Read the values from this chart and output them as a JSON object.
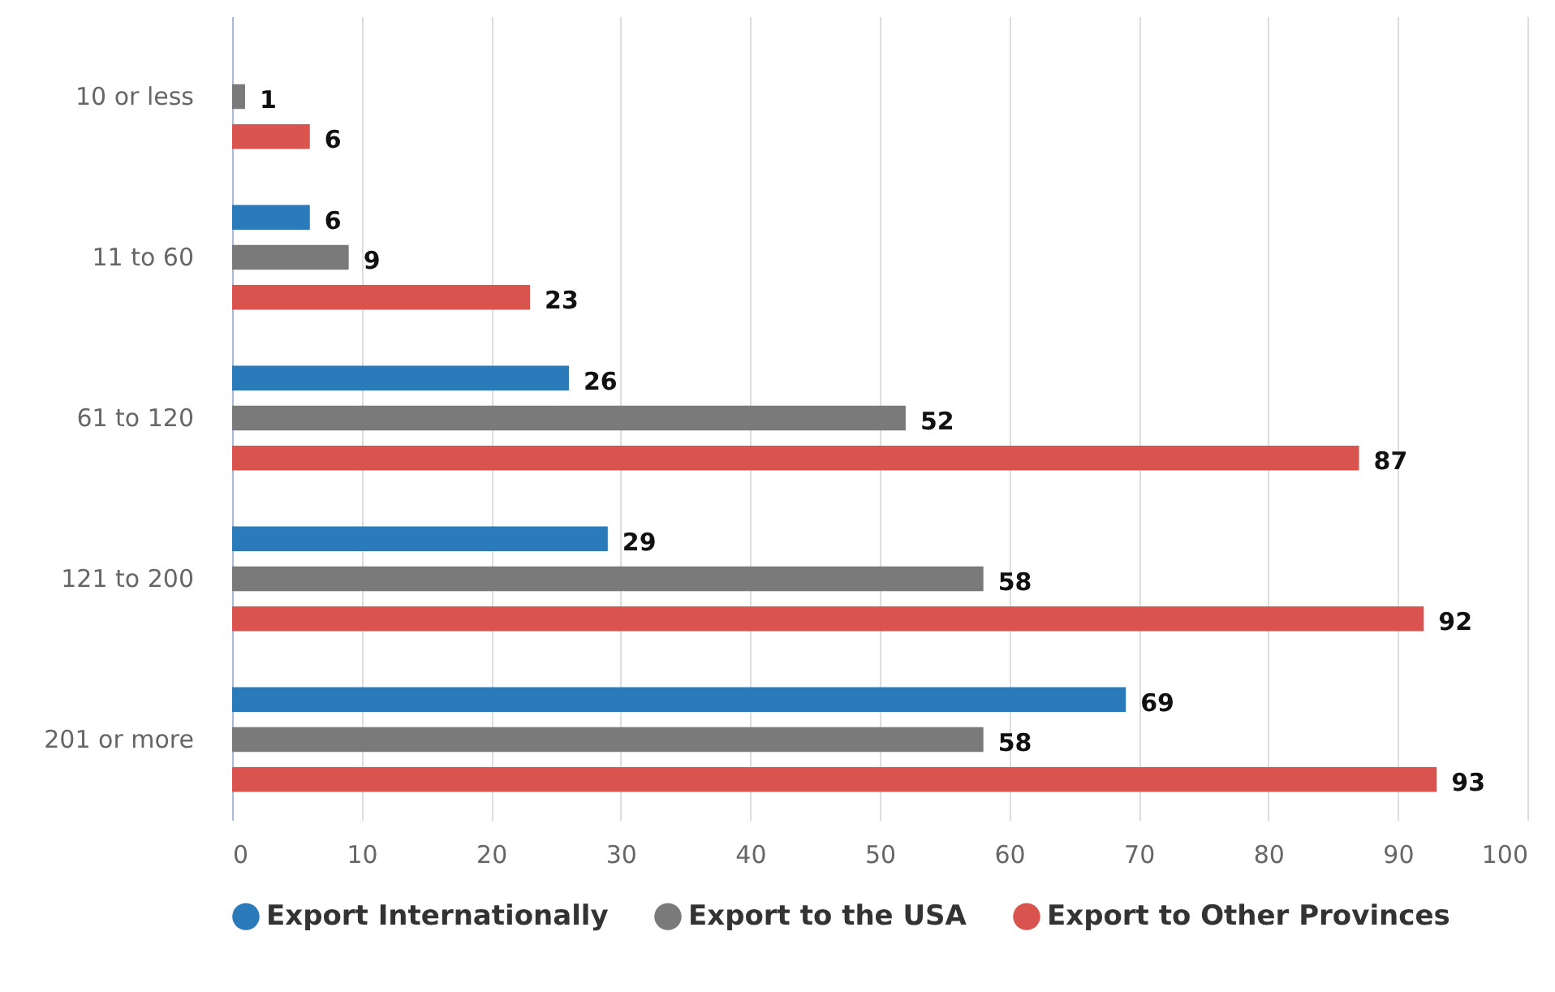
{
  "chart_data": {
    "type": "bar",
    "orientation": "horizontal",
    "categories": [
      "10 or less",
      "11 to 60",
      "61 to 120",
      "121 to 200",
      "201 or more"
    ],
    "series": [
      {
        "name": "Export Internationally",
        "color": "#2b7bba",
        "values": [
          null,
          6,
          26,
          29,
          69
        ]
      },
      {
        "name": "Export to the USA",
        "color": "#7a7a7a",
        "values": [
          1,
          9,
          52,
          58,
          58
        ]
      },
      {
        "name": "Export to Other Provinces",
        "color": "#d9534f",
        "values": [
          6,
          23,
          87,
          92,
          93
        ]
      }
    ],
    "xlim": [
      0,
      100
    ],
    "xticks": [
      0,
      10,
      20,
      30,
      40,
      50,
      60,
      70,
      80,
      90,
      100
    ],
    "grid": "x",
    "legend": "bottom",
    "data_labels": true
  }
}
